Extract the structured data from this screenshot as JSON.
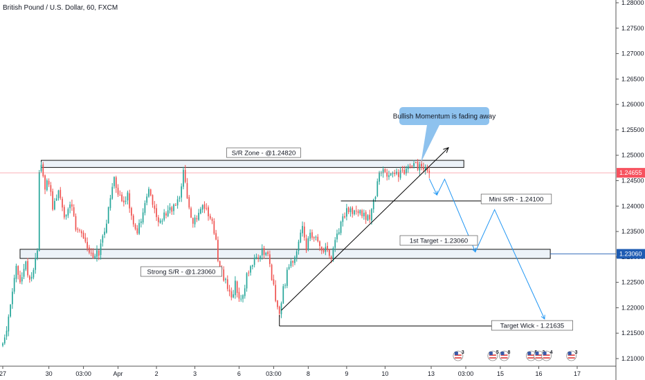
{
  "colors": {
    "up": "#26a69a",
    "down": "#ef5350",
    "drawing": "#000000",
    "projection": "#2196f3",
    "price_line_current": "#f7525f",
    "price_line_support": "#1e5cb3",
    "callout_bg": "#8ec2ee",
    "zone_fill": "#dde7f3",
    "axis_line": "#555555"
  },
  "chart_data": {
    "type": "candlestick",
    "title": "British Pound / U.S. Dollar, 60, FXCM",
    "y_axis": {
      "range": [
        1.2075,
        1.2803
      ],
      "ticks": [
        "1.21000",
        "1.21500",
        "1.22000",
        "1.22500",
        "1.23000",
        "1.23500",
        "1.24000",
        "1.24500",
        "1.25000",
        "1.25500",
        "1.26000",
        "1.26500",
        "1.27000",
        "1.27500",
        "1.28000"
      ]
    },
    "x_axis": {
      "ticks": [
        {
          "label": "27",
          "i": 0
        },
        {
          "label": "30",
          "i": 24
        },
        {
          "label": "03:00",
          "i": 42
        },
        {
          "label": "Apr",
          "i": 60
        },
        {
          "label": "2",
          "i": 80
        },
        {
          "label": "3",
          "i": 100
        },
        {
          "label": "6",
          "i": 123
        },
        {
          "label": "03:00",
          "i": 141
        },
        {
          "label": "8",
          "i": 159
        },
        {
          "label": "9",
          "i": 179
        },
        {
          "label": "10",
          "i": 199
        },
        {
          "label": "13",
          "i": 223
        },
        {
          "label": "03:00",
          "i": 241
        },
        {
          "label": "15",
          "i": 259
        },
        {
          "label": "16",
          "i": 279
        },
        {
          "label": "17",
          "i": 299
        }
      ],
      "index_range": [
        0,
        335
      ]
    },
    "price_path": [
      [
        0,
        1.2125
      ],
      [
        3,
        1.216
      ],
      [
        6,
        1.223
      ],
      [
        8,
        1.2275
      ],
      [
        10,
        1.2255
      ],
      [
        13,
        1.229
      ],
      [
        15,
        1.225
      ],
      [
        17,
        1.2275
      ],
      [
        19,
        1.231
      ],
      [
        20,
        1.2465
      ],
      [
        21,
        1.248
      ],
      [
        23,
        1.244
      ],
      [
        25,
        1.245
      ],
      [
        27,
        1.24
      ],
      [
        30,
        1.243
      ],
      [
        33,
        1.238
      ],
      [
        36,
        1.241
      ],
      [
        39,
        1.236
      ],
      [
        42,
        1.235
      ],
      [
        45,
        1.232
      ],
      [
        48,
        1.23
      ],
      [
        51,
        1.231
      ],
      [
        54,
        1.235
      ],
      [
        57,
        1.242
      ],
      [
        59,
        1.2455
      ],
      [
        61,
        1.243
      ],
      [
        64,
        1.24
      ],
      [
        66,
        1.242
      ],
      [
        68,
        1.238
      ],
      [
        71,
        1.235
      ],
      [
        74,
        1.239
      ],
      [
        77,
        1.243
      ],
      [
        80,
        1.24
      ],
      [
        82,
        1.237
      ],
      [
        85,
        1.238
      ],
      [
        88,
        1.2395
      ],
      [
        91,
        1.24
      ],
      [
        93,
        1.242
      ],
      [
        95,
        1.2465
      ],
      [
        96,
        1.245
      ],
      [
        98,
        1.239
      ],
      [
        100,
        1.237
      ],
      [
        103,
        1.2385
      ],
      [
        106,
        1.24
      ],
      [
        109,
        1.238
      ],
      [
        112,
        1.2335
      ],
      [
        113,
        1.229
      ],
      [
        115,
        1.227
      ],
      [
        118,
        1.224
      ],
      [
        120,
        1.2215
      ],
      [
        122,
        1.225
      ],
      [
        124,
        1.222
      ],
      [
        126,
        1.223
      ],
      [
        128,
        1.226
      ],
      [
        131,
        1.229
      ],
      [
        133,
        1.23
      ],
      [
        136,
        1.231
      ],
      [
        139,
        1.23
      ],
      [
        141,
        1.226
      ],
      [
        142,
        1.224
      ],
      [
        144,
        1.22
      ],
      [
        145,
        1.2195
      ],
      [
        147,
        1.2235
      ],
      [
        149,
        1.227
      ],
      [
        151,
        1.2285
      ],
      [
        153,
        1.23
      ],
      [
        155,
        1.233
      ],
      [
        157,
        1.236
      ],
      [
        159,
        1.232
      ],
      [
        161,
        1.234
      ],
      [
        164,
        1.2335
      ],
      [
        166,
        1.232
      ],
      [
        169,
        1.2315
      ],
      [
        172,
        1.23
      ],
      [
        175,
        1.234
      ],
      [
        178,
        1.2375
      ],
      [
        181,
        1.2395
      ],
      [
        184,
        1.239
      ],
      [
        187,
        1.2385
      ],
      [
        190,
        1.238
      ],
      [
        192,
        1.237
      ],
      [
        193,
        1.24
      ],
      [
        195,
        1.2425
      ],
      [
        197,
        1.246
      ],
      [
        199,
        1.247
      ],
      [
        202,
        1.2455
      ],
      [
        205,
        1.246
      ],
      [
        208,
        1.2465
      ],
      [
        211,
        1.247
      ],
      [
        214,
        1.2477
      ],
      [
        216,
        1.2478
      ],
      [
        219,
        1.2474
      ],
      [
        221,
        1.2468
      ],
      [
        222,
        1.2466
      ]
    ],
    "current_price": "1.24655",
    "support_price": "1.23060",
    "sr_zone": {
      "label": "S/R Zone - @1.24820",
      "top": 1.249,
      "bottom": 1.2476,
      "i_start": 20,
      "i_end": 240
    },
    "strong_zone": {
      "label": "Strong S/R - @1.23060",
      "top": 1.2315,
      "bottom": 1.2297,
      "i_start": 9,
      "i_end": 285
    },
    "mini_sr": {
      "label": "Mini S/R - 1.24100",
      "price": 1.241,
      "i_start": 176,
      "i_end": 252
    },
    "first_target": {
      "label": "1st Target - 1.23060"
    },
    "target_wick": {
      "label": "Target Wick - 1.21635",
      "price": 1.2164,
      "i_start": 144,
      "i_end": 257
    },
    "trendline": {
      "from": [
        145,
        1.2195
      ],
      "to": [
        232,
        1.2515
      ]
    },
    "projection_path": [
      [
        222,
        1.2454
      ],
      [
        226,
        1.2422
      ],
      [
        230,
        1.2453
      ],
      [
        246,
        1.231
      ],
      [
        256,
        1.2393
      ],
      [
        282,
        1.2178
      ]
    ],
    "callout": {
      "text": "Bullish Momentum is fading away",
      "anchor": [
        217,
        1.2478
      ]
    },
    "event_badges": [
      {
        "i": 237,
        "text": "3"
      },
      {
        "i": 255,
        "text": "5"
      },
      {
        "i": 261,
        "text": "8"
      },
      {
        "i": 275,
        "text": "5"
      },
      {
        "i": 279,
        "text": "2"
      },
      {
        "i": 283,
        "text": "4"
      },
      {
        "i": 296,
        "text": "3"
      }
    ]
  }
}
